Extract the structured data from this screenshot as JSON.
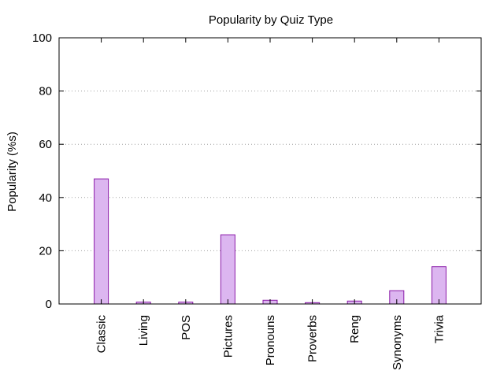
{
  "chart_data": {
    "type": "bar",
    "title": "Popularity by Quiz Type",
    "xlabel": "",
    "ylabel": "Popularity (%s)",
    "categories": [
      "Classic",
      "Living",
      "POS",
      "Pictures",
      "Pronouns",
      "Proverbs",
      "Reng",
      "Synonyms",
      "Trivia"
    ],
    "values": [
      47,
      0.7,
      0.7,
      26,
      1.4,
      0.5,
      1.1,
      5,
      14
    ],
    "ylim": [
      0,
      100
    ],
    "yticks": [
      "0",
      "20",
      "40",
      "60",
      "80",
      "100"
    ],
    "grid": true,
    "legend": false,
    "colors": {
      "bar_fill": "#dcb6f0",
      "bar_stroke": "#8a1aa8",
      "grid": "#a0a0a0",
      "axis": "#000000"
    }
  }
}
